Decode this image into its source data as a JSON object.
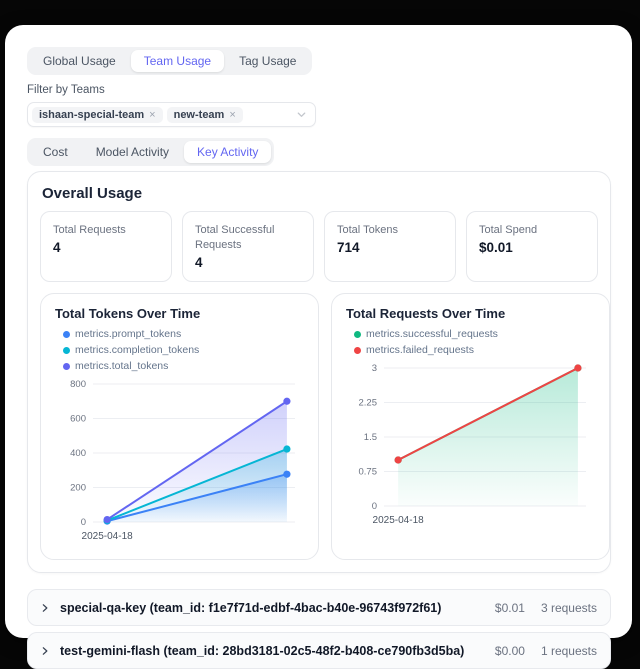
{
  "accent_color": "#6366f1",
  "tabs_top": {
    "items": [
      {
        "label": "Global Usage",
        "active": false
      },
      {
        "label": "Team Usage",
        "active": true
      },
      {
        "label": "Tag Usage",
        "active": false
      }
    ]
  },
  "filter": {
    "label": "Filter by Teams",
    "chips": [
      {
        "label": "ishaan-special-team",
        "remove_icon": "×"
      },
      {
        "label": "new-team",
        "remove_icon": "×"
      }
    ]
  },
  "tabs_sub": {
    "items": [
      {
        "label": "Cost",
        "active": false
      },
      {
        "label": "Model Activity",
        "active": false
      },
      {
        "label": "Key Activity",
        "active": true
      }
    ]
  },
  "overall": {
    "title": "Overall Usage",
    "stats": [
      {
        "label": "Total Requests",
        "value": "4"
      },
      {
        "label": "Total Successful Requests",
        "value": "4"
      },
      {
        "label": "Total Tokens",
        "value": "714"
      },
      {
        "label": "Total Spend",
        "value": "$0.01"
      }
    ]
  },
  "chart_data": [
    {
      "type": "area",
      "title": "Total Tokens Over Time",
      "x": [
        "2025-04-18",
        ""
      ],
      "x_tick_labels": [
        "2025-04-18"
      ],
      "series": [
        {
          "name": "metrics.prompt_tokens",
          "color": "#3b82f6",
          "values": [
            5,
            277
          ],
          "fill": true
        },
        {
          "name": "metrics.completion_tokens",
          "color": "#06b6d4",
          "values": [
            9,
            423
          ],
          "fill": true
        },
        {
          "name": "metrics.total_tokens",
          "color": "#6366f1",
          "values": [
            14,
            700
          ],
          "fill": true
        }
      ],
      "ylim": [
        0,
        800
      ],
      "yticks": [
        0,
        200,
        400,
        600,
        800
      ],
      "grid": true,
      "legend_position": "top"
    },
    {
      "type": "area",
      "title": "Total Requests Over Time",
      "x": [
        "2025-04-18",
        ""
      ],
      "x_tick_labels": [
        "2025-04-18"
      ],
      "series": [
        {
          "name": "metrics.successful_requests",
          "color": "#10b981",
          "values": [
            1,
            3
          ],
          "fill": true
        },
        {
          "name": "metrics.failed_requests",
          "color": "#ef4444",
          "values": [
            1,
            3
          ],
          "fill": false
        }
      ],
      "ylim": [
        0,
        3
      ],
      "yticks": [
        0,
        0.75,
        1.5,
        2.25,
        3
      ],
      "grid": true,
      "legend_position": "top"
    }
  ],
  "keys": [
    {
      "name": "special-qa-key (team_id: f1e7f71d-edbf-4bac-b40e-96743f972f61)",
      "spend": "$0.01",
      "requests": "3 requests"
    },
    {
      "name": "test-gemini-flash (team_id: 28bd3181-02c5-48f2-b408-ce790fb3d5ba)",
      "spend": "$0.00",
      "requests": "1 requests"
    }
  ]
}
